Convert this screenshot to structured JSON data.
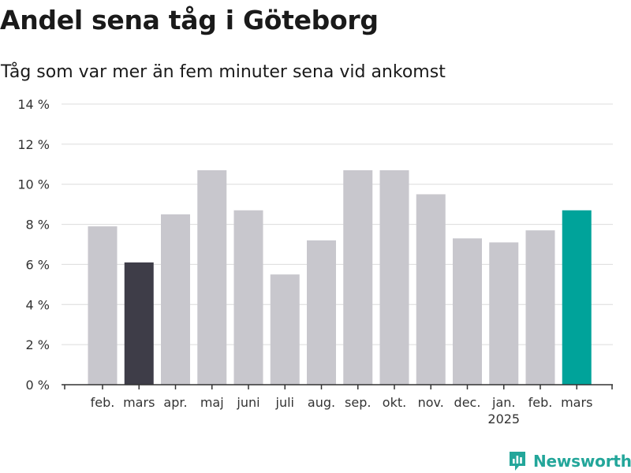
{
  "header": {
    "title": "Andel sena tåg i Göteborg",
    "subtitle": "Tåg som var mer än fem minuter sena vid ankomst"
  },
  "brand": {
    "name": "Newsworthy",
    "color": "#23a69a"
  },
  "colors": {
    "bar_default": "#c8c7cd",
    "bar_previous_year": "#3e3d48",
    "bar_current": "#00a39a",
    "grid": "#dcdcdc",
    "axis": "#333333"
  },
  "chart_data": {
    "type": "bar",
    "title": "Andel sena tåg i Göteborg",
    "subtitle": "Tåg som var mer än fem minuter sena vid ankomst",
    "categories": [
      "feb.",
      "mars",
      "apr.",
      "maj",
      "juni",
      "juli",
      "aug.",
      "sep.",
      "okt.",
      "nov.",
      "dec.",
      "jan.",
      "feb.",
      "mars"
    ],
    "year_labels": [
      "",
      "",
      "",
      "",
      "",
      "",
      "",
      "",
      "",
      "",
      "",
      "2025",
      "",
      ""
    ],
    "values": [
      7.9,
      6.1,
      8.5,
      10.7,
      8.7,
      5.5,
      7.2,
      10.7,
      10.7,
      9.5,
      7.3,
      7.1,
      7.7,
      8.7
    ],
    "highlight": [
      "default",
      "previous_year",
      "default",
      "default",
      "default",
      "default",
      "default",
      "default",
      "default",
      "default",
      "default",
      "default",
      "default",
      "current"
    ],
    "ylim": [
      0,
      14
    ],
    "yticks": [
      0,
      2,
      4,
      6,
      8,
      10,
      12,
      14
    ],
    "ytick_labels": [
      "0 %",
      "2 %",
      "4 %",
      "6 %",
      "8 %",
      "10 %",
      "12 %",
      "14 %"
    ],
    "xlabel": "",
    "ylabel": "",
    "grid": true
  }
}
